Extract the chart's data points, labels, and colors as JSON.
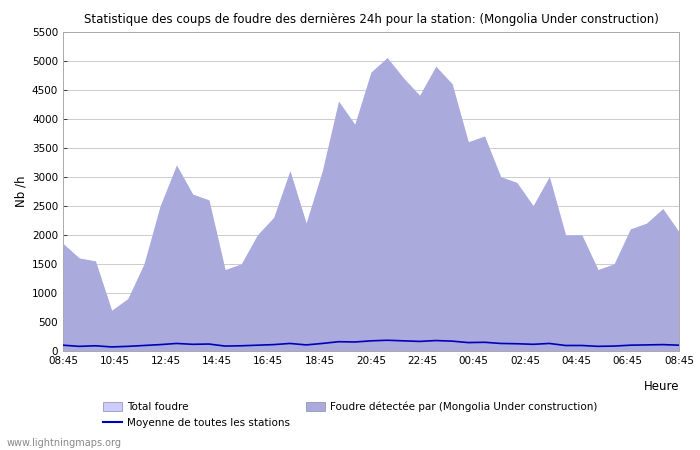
{
  "title": "Statistique des coups de foudre des dernières 24h pour la station: (Mongolia Under construction)",
  "ylabel": "Nb /h",
  "xlabel": "Heure",
  "watermark": "www.lightningmaps.org",
  "ylim": [
    0,
    5500
  ],
  "yticks": [
    0,
    500,
    1000,
    1500,
    2000,
    2500,
    3000,
    3500,
    4000,
    4500,
    5000,
    5500
  ],
  "xtick_labels": [
    "08:45",
    "10:45",
    "12:45",
    "14:45",
    "16:45",
    "18:45",
    "20:45",
    "22:45",
    "00:45",
    "02:45",
    "04:45",
    "06:45",
    "08:45"
  ],
  "legend_total": "Total foudre",
  "legend_moyenne": "Moyenne de toutes les stations",
  "legend_detectee": "Foudre détectée par (Mongolia Under construction)",
  "fill_total_color": "#ccccff",
  "fill_detected_color": "#aaaadd",
  "line_moyenne_color": "#0000bb",
  "background_color": "#ffffff",
  "grid_color": "#cccccc",
  "total_foudre": [
    1850,
    1600,
    1550,
    700,
    900,
    1500,
    2500,
    3200,
    2700,
    2600,
    1400,
    1500,
    2000,
    2300,
    3100,
    2200,
    3100,
    4300,
    3900,
    4800,
    5050,
    4700,
    4400,
    4900,
    4600,
    3600,
    3700,
    3000,
    2900,
    2500,
    3000,
    2000,
    2000,
    1400,
    1500,
    2100,
    2200,
    2450,
    2050
  ],
  "detected_foudre": [
    1850,
    1600,
    1550,
    700,
    900,
    1500,
    2500,
    3200,
    2700,
    2600,
    1400,
    1500,
    2000,
    2300,
    3100,
    2200,
    3100,
    4300,
    3900,
    4800,
    5050,
    4700,
    4400,
    4900,
    4600,
    3600,
    3700,
    3000,
    2900,
    2500,
    3000,
    2000,
    2000,
    1400,
    1500,
    2100,
    2200,
    2450,
    2050
  ],
  "moyenne": [
    100,
    80,
    90,
    70,
    80,
    95,
    110,
    130,
    115,
    120,
    85,
    90,
    100,
    110,
    130,
    105,
    130,
    160,
    155,
    175,
    185,
    175,
    165,
    180,
    170,
    145,
    150,
    130,
    125,
    115,
    130,
    95,
    95,
    80,
    85,
    100,
    105,
    110,
    100
  ]
}
